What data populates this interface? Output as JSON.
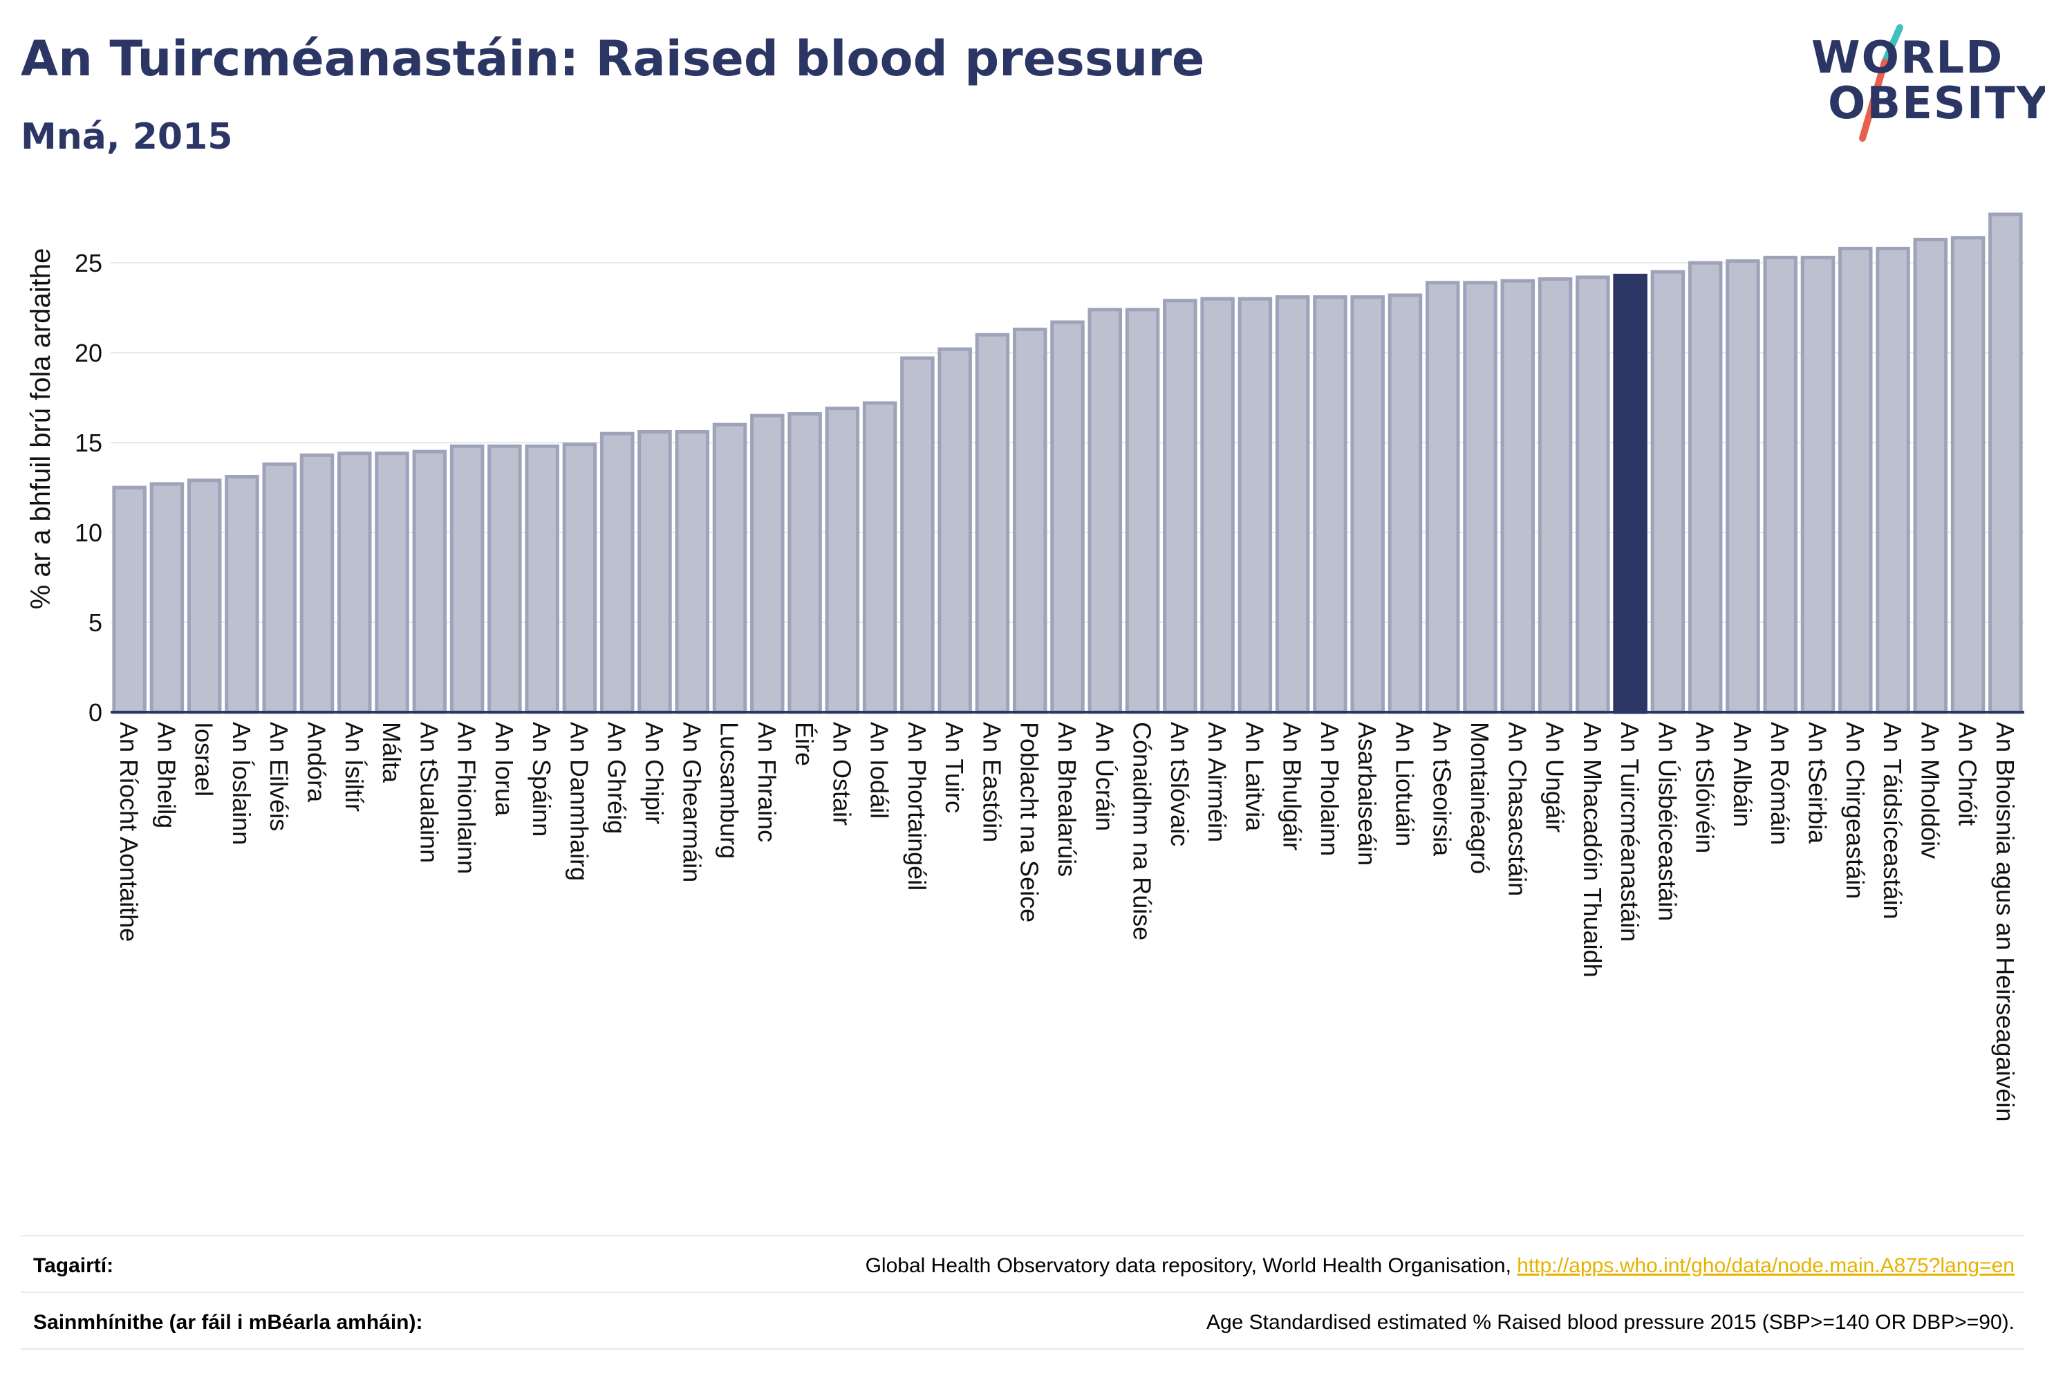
{
  "header": {
    "title": "An Tuircméanastáin: Raised blood pressure",
    "subtitle": "Mná, 2015"
  },
  "logo": {
    "line1": "WORLD",
    "line2": "OBESITY",
    "slash_colors": [
      "#3fbfbf",
      "#e8604c"
    ]
  },
  "colors": {
    "bar_default": "#bcc0cf",
    "bar_border": "#9ea3b9",
    "bar_highlight": "#2b3664",
    "text": "#111111",
    "grid": "#e4e6ec",
    "axis_line": "#2b3664"
  },
  "chart_data": {
    "type": "bar",
    "title": "An Tuircméanastáin: Raised blood pressure",
    "subtitle": "Mná, 2015",
    "ylabel": "% ar a bhfuil brú fola ardaithe",
    "xlabel": "",
    "ylim": [
      0,
      27.7
    ],
    "yticks": [
      0,
      5,
      10,
      15,
      20,
      25
    ],
    "grid": true,
    "highlight": "An Tuircméanastáin",
    "categories": [
      "An Ríocht Aontaithe",
      "An Bheilg",
      "Iosrael",
      "An Íoslainn",
      "An Eilvéis",
      "Andóra",
      "An Ísiltír",
      "Málta",
      "An tSualainn",
      "An Fhionlainn",
      "An Iorua",
      "An Spáinn",
      "An Danmhairg",
      "An Ghréig",
      "An Chipir",
      "An Ghearmáin",
      "Lucsamburg",
      "An Fhrainc",
      "Éire",
      "An Ostair",
      "An Iodáil",
      "An Phortaingéil",
      "An Tuirc",
      "An Eastóin",
      "Poblacht na Seice",
      "An Bhealarúis",
      "An Úcráin",
      "Cónaidhm na Rúise",
      "An tSlóvaic",
      "An Airméin",
      "An Laitvia",
      "An Bhulgáir",
      "An Pholainn",
      "Asarbaiseáin",
      "An Liotuáin",
      "An tSeoirsia",
      "Montainéagró",
      "An Chasacstáin",
      "An Ungáir",
      "An Mhacadóin Thuaidh",
      "An Tuircméanastáin",
      "An Úisbéiceastáin",
      "An tSlóivéin",
      "An Albáin",
      "An Rómáin",
      "An tSeirbia",
      "An Chirgeastáin",
      "An Táidsíceastáin",
      "An Mholdóiv",
      "An Chróit",
      "An Bhoisnia agus an Heirseagaivéin"
    ],
    "values": [
      12.5,
      12.7,
      12.9,
      13.1,
      13.8,
      14.3,
      14.4,
      14.4,
      14.5,
      14.8,
      14.8,
      14.8,
      14.9,
      15.5,
      15.6,
      15.6,
      16.0,
      16.5,
      16.6,
      16.9,
      17.2,
      19.7,
      20.2,
      21.0,
      21.3,
      21.7,
      22.4,
      22.4,
      22.9,
      23.0,
      23.0,
      23.1,
      23.1,
      23.1,
      23.2,
      23.9,
      23.9,
      24.0,
      24.1,
      24.2,
      24.3,
      24.5,
      25.0,
      25.1,
      25.3,
      25.3,
      25.8,
      25.8,
      26.3,
      26.4,
      27.7
    ]
  },
  "footer": {
    "references_label": "Tagairtí:",
    "references_text": "Global Health Observatory data repository, World Health Organisation, ",
    "references_link": "http://apps.who.int/gho/data/node.main.A875?lang=en",
    "definitions_label": "Sainmhínithe (ar fáil i mBéarla amháin):",
    "definitions_text": "Age Standardised estimated % Raised blood pressure 2015 (SBP>=140 OR DBP>=90)."
  }
}
